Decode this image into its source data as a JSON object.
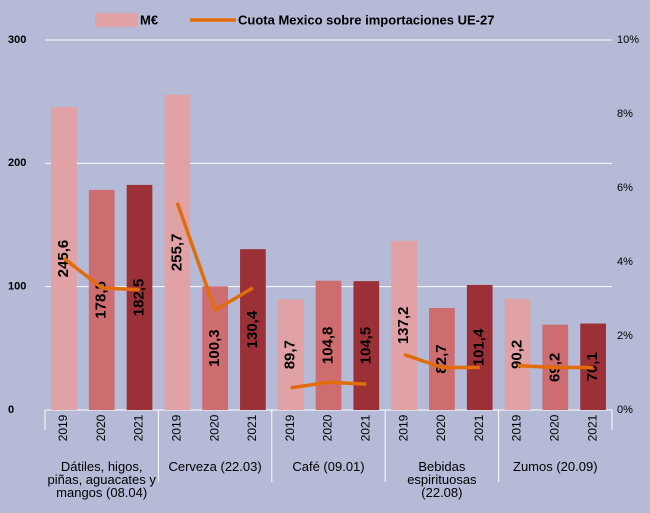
{
  "chart_data": {
    "type": "bar",
    "categories": [
      "2019",
      "2020",
      "2021",
      "2019",
      "2020",
      "2021",
      "2019",
      "2020",
      "2021",
      "2019",
      "2020",
      "2021",
      "2019",
      "2020",
      "2021"
    ],
    "groups": [
      "Dátiles, higos, piñas, aguacates y mangos  (08.04)",
      "Cerveza (22.03)",
      "Café (09.01)",
      "Bebidas espirituosas (22.08)",
      "Zumos (20.09)"
    ],
    "series": [
      {
        "name": "M€",
        "type": "bar",
        "colors": [
          "#e0a2a5",
          "#cd6d70",
          "#9b3136"
        ],
        "values": [
          245.6,
          178.5,
          182.5,
          255.7,
          100.3,
          130.4,
          89.7,
          104.8,
          104.5,
          137.2,
          82.7,
          101.4,
          90.2,
          69.2,
          70.1
        ],
        "value_labels": [
          "245,6",
          "178,5",
          "182,5",
          "255,7",
          "100,3",
          "130,4",
          "89,7",
          "104,8",
          "104,5",
          "137,2",
          "82,7",
          "101,4",
          "90,2",
          "69,2",
          "70,1"
        ]
      },
      {
        "name": "Cuota Mexico sobre importaciones UE-27",
        "type": "line",
        "axis": "y2",
        "color": "#e36c0a",
        "values": [
          4.1,
          3.3,
          3.25,
          5.6,
          2.7,
          3.3,
          0.6,
          0.75,
          0.7,
          1.5,
          1.15,
          1.15,
          1.2,
          1.15,
          1.15
        ]
      }
    ],
    "ylim": [
      0,
      300
    ],
    "yticks": [
      0,
      100,
      200,
      300
    ],
    "y2lim": [
      0,
      10
    ],
    "y2ticks": [
      {
        "value": 0,
        "label": "0%"
      },
      {
        "value": 2,
        "label": "2%"
      },
      {
        "value": 4,
        "label": "4%"
      },
      {
        "value": 6,
        "label": "6%"
      },
      {
        "value": 8,
        "label": "8%"
      },
      {
        "value": 10,
        "label": "10%"
      }
    ],
    "grid": true
  }
}
